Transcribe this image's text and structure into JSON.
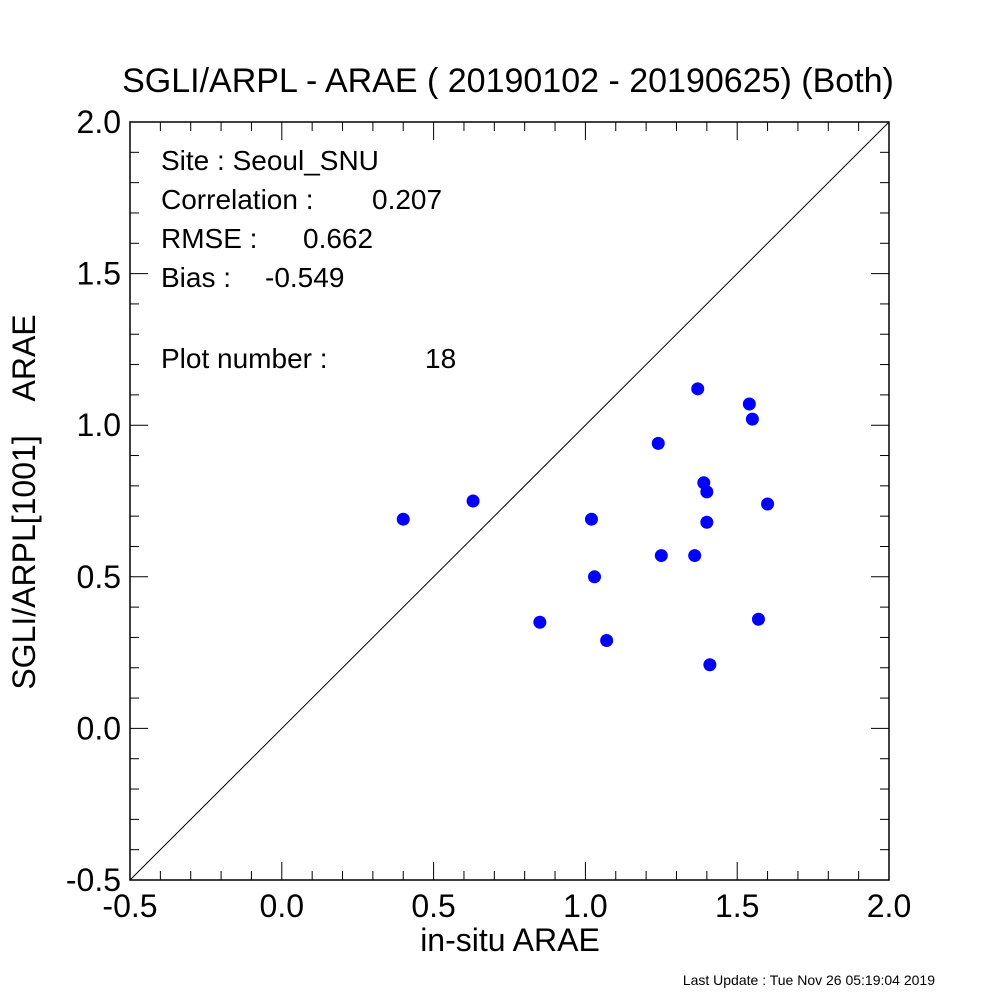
{
  "chart_data": {
    "type": "scatter",
    "title": "SGLI/ARPL - ARAE ( 20190102 - 20190625) (Both)",
    "xlabel": "in-situ ARAE",
    "ylabel": "SGLI/ARPL[1001]    ARAE",
    "xlim": [
      -0.5,
      2.0
    ],
    "ylim": [
      -0.5,
      2.0
    ],
    "x_ticks": [
      "-0.5",
      "0.0",
      "0.5",
      "1.0",
      "1.5",
      "2.0"
    ],
    "y_ticks": [
      "-0.5",
      "0.0",
      "0.5",
      "1.0",
      "1.5",
      "2.0"
    ],
    "reference_line": "1:1",
    "point_color": "#0000ff",
    "points": [
      {
        "x": 0.4,
        "y": 0.69
      },
      {
        "x": 0.63,
        "y": 0.75
      },
      {
        "x": 0.85,
        "y": 0.35
      },
      {
        "x": 1.02,
        "y": 0.69
      },
      {
        "x": 1.03,
        "y": 0.5
      },
      {
        "x": 1.07,
        "y": 0.29
      },
      {
        "x": 1.24,
        "y": 0.94
      },
      {
        "x": 1.25,
        "y": 0.57
      },
      {
        "x": 1.36,
        "y": 0.57
      },
      {
        "x": 1.37,
        "y": 1.12
      },
      {
        "x": 1.39,
        "y": 0.81
      },
      {
        "x": 1.4,
        "y": 0.68
      },
      {
        "x": 1.4,
        "y": 0.78
      },
      {
        "x": 1.41,
        "y": 0.21
      },
      {
        "x": 1.54,
        "y": 1.07
      },
      {
        "x": 1.55,
        "y": 1.02
      },
      {
        "x": 1.57,
        "y": 0.36
      },
      {
        "x": 1.6,
        "y": 0.74
      }
    ]
  },
  "stats": {
    "site": "Site : Seoul_SNU",
    "correlation_label": "Correlation :",
    "correlation_value": "0.207",
    "rmse_label": "RMSE :",
    "rmse_value": "0.662",
    "bias_label": "Bias :",
    "bias_value": "-0.549",
    "plot_number_label": "Plot number :",
    "plot_number_value": "18"
  },
  "footer": {
    "last_update": "Last Update : Tue Nov 26 05:19:04 2019"
  }
}
